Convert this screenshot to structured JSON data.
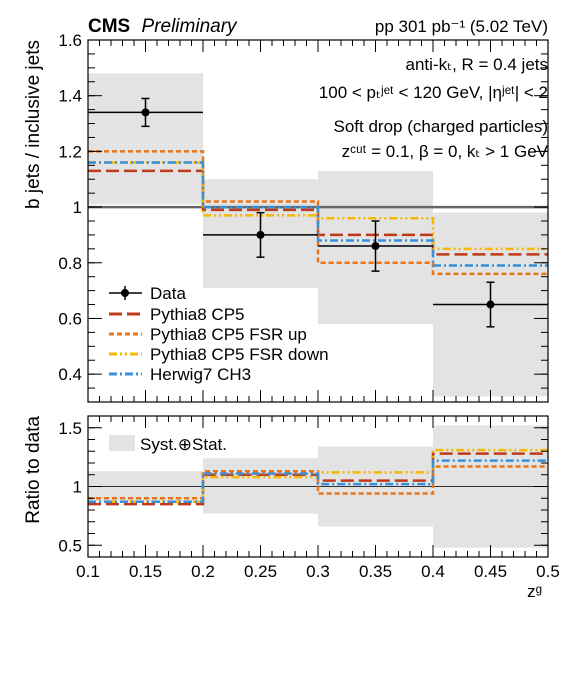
{
  "header": {
    "experiment": "CMS",
    "status": "Preliminary",
    "luminosity": "pp 301 pb⁻¹ (5.02 TeV)"
  },
  "annotations": [
    "anti-kₜ, R = 0.4 jets",
    "100 < pₜʲᵉᵗ < 120 GeV, |ηʲᵉᵗ| < 2",
    "Soft drop (charged particles)",
    "zᶜᵘᵗ = 0.1, β = 0, kₜ > 1 GeV"
  ],
  "legend": {
    "items": [
      {
        "key": "data",
        "label": "Data"
      },
      {
        "key": "cp5",
        "label": "Pythia8 CP5"
      },
      {
        "key": "fsrup",
        "label": "Pythia8 CP5 FSR up"
      },
      {
        "key": "fsrdown",
        "label": "Pythia8 CP5 FSR down"
      },
      {
        "key": "herwig",
        "label": "Herwig7 CH3"
      }
    ],
    "ratio_label": "Syst.⊕Stat."
  },
  "colors": {
    "data": "#000000",
    "cp5": "#c0391b",
    "fsrup": "#e8751a",
    "fsrdown": "#f5b700",
    "herwig": "#3a8fd9",
    "band": "#e3e3e3"
  },
  "chart_data": [
    {
      "type": "line",
      "panel": "main",
      "xlabel": "",
      "ylabel": "b jets / inclusive jets",
      "xlim": [
        0.1,
        0.5
      ],
      "ylim": [
        0.3,
        1.6
      ],
      "yticks": [
        "0.4",
        "0.6",
        "0.8",
        "1",
        "1.2",
        "1.4",
        "1.6"
      ],
      "reference_line": 1.0,
      "bins": [
        [
          0.1,
          0.2
        ],
        [
          0.2,
          0.3
        ],
        [
          0.3,
          0.4
        ],
        [
          0.4,
          0.5
        ]
      ],
      "data": {
        "x": [
          0.15,
          0.25,
          0.35,
          0.45
        ],
        "y": [
          1.34,
          0.9,
          0.86,
          0.65
        ],
        "stat_err": [
          0.05,
          0.08,
          0.09,
          0.08
        ],
        "band_low": [
          1.01,
          0.71,
          0.58,
          0.32
        ],
        "band_high": [
          1.48,
          1.1,
          1.13,
          0.98
        ]
      },
      "series": [
        {
          "key": "cp5",
          "values": [
            1.13,
            0.99,
            0.9,
            0.83
          ]
        },
        {
          "key": "fsrup",
          "values": [
            1.2,
            1.02,
            0.8,
            0.76
          ]
        },
        {
          "key": "fsrdown",
          "values": [
            1.16,
            0.97,
            0.96,
            0.85
          ]
        },
        {
          "key": "herwig",
          "values": [
            1.16,
            1.0,
            0.88,
            0.79
          ]
        }
      ]
    },
    {
      "type": "line",
      "panel": "ratio",
      "xlabel": "zᵍ",
      "ylabel": "Ratio to data",
      "xlim": [
        0.1,
        0.5
      ],
      "ylim": [
        0.4,
        1.6
      ],
      "xticks": [
        "0.1",
        "0.15",
        "0.2",
        "0.25",
        "0.3",
        "0.35",
        "0.4",
        "0.45",
        "0.5"
      ],
      "yticks": [
        "0.5",
        "1",
        "1.5"
      ],
      "reference_line": 1.0,
      "bins": [
        [
          0.1,
          0.2
        ],
        [
          0.2,
          0.3
        ],
        [
          0.3,
          0.4
        ],
        [
          0.4,
          0.5
        ]
      ],
      "band_low": [
        0.87,
        0.77,
        0.66,
        0.48
      ],
      "band_high": [
        1.13,
        1.24,
        1.34,
        1.52
      ],
      "series": [
        {
          "key": "cp5",
          "values": [
            0.85,
            1.1,
            1.05,
            1.28
          ]
        },
        {
          "key": "fsrup",
          "values": [
            0.9,
            1.13,
            0.94,
            1.17
          ]
        },
        {
          "key": "fsrdown",
          "values": [
            0.87,
            1.08,
            1.12,
            1.31
          ]
        },
        {
          "key": "herwig",
          "values": [
            0.87,
            1.11,
            1.02,
            1.22
          ]
        }
      ]
    }
  ]
}
